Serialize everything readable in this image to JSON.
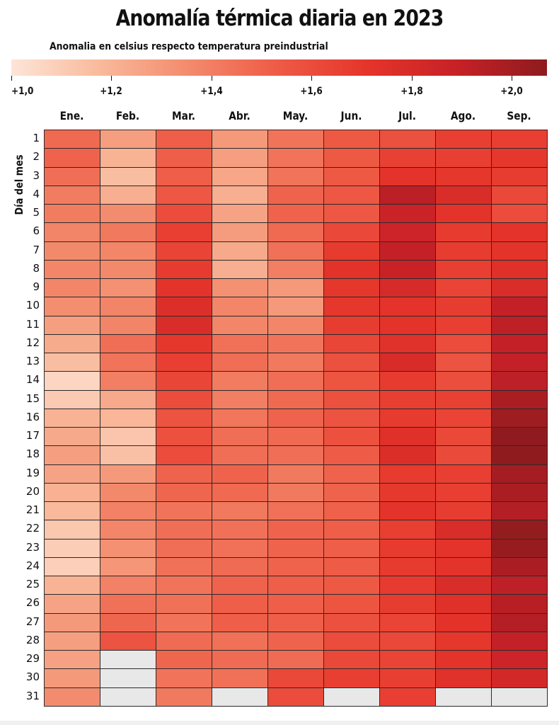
{
  "chart_data": {
    "type": "heatmap",
    "title": "Anomalía térmica diaria en 2023",
    "subtitle": "Anomalia en celsius respecto temperatura preindustrial",
    "ylabel": "Día del mes",
    "months": [
      "Ene.",
      "Feb.",
      "Mar.",
      "Abr.",
      "May.",
      "Jun.",
      "Jul.",
      "Ago.",
      "Sep."
    ],
    "days": [
      "1",
      "2",
      "3",
      "4",
      "5",
      "6",
      "7",
      "8",
      "9",
      "10",
      "11",
      "12",
      "13",
      "14",
      "15",
      "16",
      "17",
      "18",
      "19",
      "20",
      "21",
      "22",
      "23",
      "24",
      "25",
      "26",
      "27",
      "28",
      "29",
      "30",
      "31"
    ],
    "colorbar": {
      "min": 1.0,
      "max": 2.07,
      "ticks": [
        1.0,
        1.2,
        1.4,
        1.6,
        1.8,
        2.0
      ],
      "tick_labels": [
        "+1,0",
        "+1,2",
        "+1,4",
        "+1,6",
        "+1,8",
        "+2,0"
      ],
      "colors": [
        "#fde5d8",
        "#f9b99b",
        "#f38a6c",
        "#ee5a45",
        "#e5342a",
        "#c62127",
        "#8d1b1e"
      ]
    },
    "missing_color": "#e8e8e8",
    "values": [
      [
        1.48,
        1.5,
        1.46,
        1.41,
        1.41,
        1.38,
        1.36,
        1.37,
        1.37,
        1.34,
        1.28,
        1.23,
        1.16,
        1.06,
        1.11,
        1.2,
        1.24,
        1.28,
        1.26,
        1.21,
        1.18,
        1.12,
        1.1,
        1.09,
        1.2,
        1.26,
        1.3,
        1.28,
        1.27,
        1.3,
        1.35
      ],
      [
        1.28,
        1.2,
        1.16,
        1.22,
        1.35,
        1.42,
        1.37,
        1.36,
        1.33,
        1.38,
        1.38,
        1.46,
        1.44,
        1.4,
        1.24,
        1.19,
        1.13,
        1.15,
        1.3,
        1.36,
        1.39,
        1.37,
        1.33,
        1.31,
        1.39,
        1.45,
        1.49,
        1.57,
        null,
        null,
        null
      ],
      [
        1.52,
        1.52,
        1.52,
        1.55,
        1.6,
        1.66,
        1.64,
        1.68,
        1.72,
        1.76,
        1.78,
        1.7,
        1.66,
        1.63,
        1.6,
        1.57,
        1.58,
        1.6,
        1.5,
        1.49,
        1.44,
        1.46,
        1.46,
        1.45,
        1.44,
        1.45,
        1.44,
        1.47,
        1.49,
        1.44,
        1.42
      ],
      [
        1.3,
        1.28,
        1.25,
        1.22,
        1.26,
        1.29,
        1.24,
        1.22,
        1.33,
        1.37,
        1.37,
        1.45,
        1.46,
        1.41,
        1.4,
        1.43,
        1.46,
        1.46,
        1.5,
        1.48,
        1.42,
        1.45,
        1.45,
        1.47,
        1.5,
        1.52,
        1.52,
        1.45,
        1.47,
        1.45,
        null
      ],
      [
        1.44,
        1.44,
        1.44,
        1.5,
        1.5,
        1.48,
        1.45,
        1.4,
        1.3,
        1.3,
        1.37,
        1.44,
        1.42,
        1.46,
        1.48,
        1.5,
        1.48,
        1.46,
        1.42,
        1.42,
        1.45,
        1.5,
        1.5,
        1.5,
        1.52,
        1.52,
        1.52,
        1.5,
        1.47,
        1.62,
        1.6
      ],
      [
        1.54,
        1.54,
        1.54,
        1.55,
        1.55,
        1.62,
        1.68,
        1.73,
        1.7,
        1.7,
        1.67,
        1.63,
        1.58,
        1.56,
        1.58,
        1.57,
        1.58,
        1.53,
        1.5,
        1.5,
        1.51,
        1.52,
        1.52,
        1.53,
        1.54,
        1.56,
        1.58,
        1.6,
        1.62,
        1.66,
        null
      ],
      [
        1.58,
        1.65,
        1.72,
        1.93,
        1.87,
        1.86,
        1.9,
        1.88,
        1.8,
        1.72,
        1.72,
        1.74,
        1.79,
        1.68,
        1.66,
        1.68,
        1.75,
        1.77,
        1.68,
        1.69,
        1.72,
        1.66,
        1.68,
        1.68,
        1.68,
        1.67,
        1.64,
        1.62,
        1.64,
        1.66,
        1.66
      ],
      [
        1.66,
        1.66,
        1.7,
        1.78,
        1.72,
        1.68,
        1.67,
        1.66,
        1.64,
        1.67,
        1.66,
        1.6,
        1.57,
        1.59,
        1.65,
        1.64,
        1.62,
        1.61,
        1.66,
        1.66,
        1.67,
        1.78,
        1.72,
        1.72,
        1.78,
        1.75,
        1.73,
        1.7,
        1.72,
        1.74,
        null
      ],
      [
        1.66,
        1.7,
        1.67,
        1.62,
        1.6,
        1.72,
        1.72,
        1.75,
        1.78,
        1.9,
        1.92,
        1.9,
        1.9,
        1.92,
        1.98,
        2.02,
        2.06,
        2.06,
        2.0,
        1.98,
        1.95,
        2.05,
        2.04,
        1.98,
        1.92,
        1.94,
        1.95,
        1.9,
        1.86,
        1.82,
        null
      ]
    ]
  }
}
